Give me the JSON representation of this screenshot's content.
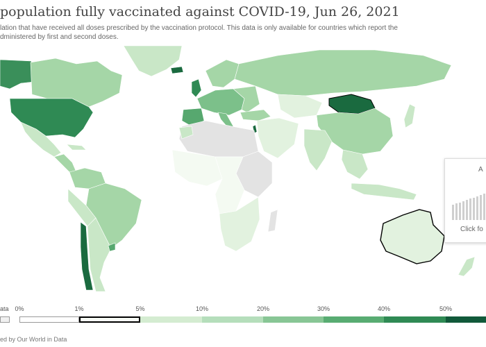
{
  "header": {
    "title": "population fully vaccinated against COVID-19, Jun 26, 2021",
    "subtitle_line1": "lation that have received all doses prescribed by the vaccination protocol. This data is only available for countries which report the",
    "subtitle_line2": "dministered by first and second doses."
  },
  "legend": {
    "no_data_label": "ata",
    "bins": [
      {
        "label": "0%",
        "color": "#ffffff"
      },
      {
        "label": "1%",
        "color": "#f7fbf5",
        "selected": true
      },
      {
        "label": "5%",
        "color": "#d4ecd1"
      },
      {
        "label": "10%",
        "color": "#b5debb"
      },
      {
        "label": "20%",
        "color": "#88c695"
      },
      {
        "label": "30%",
        "color": "#58ac72"
      },
      {
        "label": "40%",
        "color": "#2f8a54"
      },
      {
        "label": "50%",
        "color": "#11593a"
      }
    ]
  },
  "footer": {
    "source": "ed by Our World in Data"
  },
  "tooltip": {
    "heading": "A",
    "action": "Click fo"
  },
  "colors": {
    "no_data": "#e3e3e3",
    "border": "#ffffff",
    "level0": "#f4faf2",
    "level1": "#e2f2df",
    "level2": "#c9e7c7",
    "level3": "#a5d6a7",
    "level4": "#7cc08a",
    "level5": "#57a86f",
    "level6": "#2f8a54",
    "level7": "#1a6a3f"
  }
}
